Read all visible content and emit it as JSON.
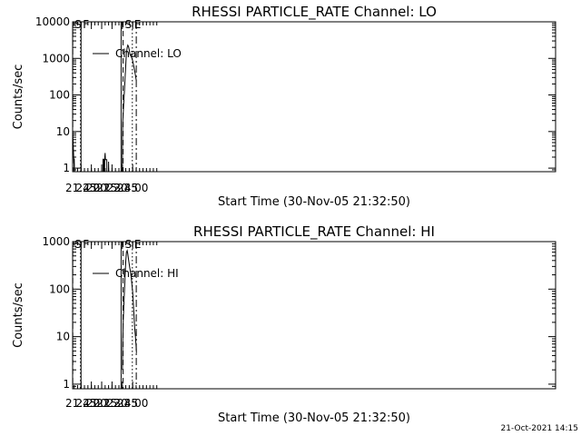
{
  "footer_stamp": "21-Oct-2021 14:15",
  "chart_data": [
    {
      "type": "line",
      "title": "RHESSI PARTICLE_RATE Channel: LO",
      "xlabel": "Start Time (30-Nov-05 21:32:50)",
      "ylabel": "Counts/sec",
      "yscale": "log",
      "ylim": [
        0.8,
        10000
      ],
      "xlim": [
        1292.8,
        1994.0
      ],
      "x_unit": "minutes of day",
      "x_ticks": [
        {
          "value": 1305,
          "label": "21:45"
        },
        {
          "value": 1320,
          "label": "22:00"
        },
        {
          "value": 1335,
          "label": "22:15"
        },
        {
          "value": 1350,
          "label": "22:30"
        },
        {
          "value": 1365,
          "label": "22:45"
        },
        {
          "value": 1380,
          "label": "23:00"
        }
      ],
      "y_ticks": [
        {
          "value": 1,
          "label": "1"
        },
        {
          "value": 10,
          "label": "10"
        },
        {
          "value": 100,
          "label": "100"
        },
        {
          "value": 1000,
          "label": "1000"
        },
        {
          "value": 10000,
          "label": "10000"
        }
      ],
      "legend": {
        "label": "Channel: LO",
        "placement": "top-left"
      },
      "markers": [
        {
          "x": 1293.0,
          "label": "S",
          "style": "dashed"
        },
        {
          "x": 1304.2,
          "label": "",
          "style": "dotted"
        },
        {
          "x": 1305.0,
          "label": "F",
          "style": "solid"
        },
        {
          "x": 1363.2,
          "label": "",
          "style": "solid"
        },
        {
          "x": 1366.0,
          "label": "S",
          "style": "dashed"
        },
        {
          "x": 1379.5,
          "label": "E",
          "style": "dotted"
        },
        {
          "x": 1385.2,
          "label": "",
          "style": "dashdot"
        }
      ],
      "series": [
        {
          "name": "Channel: LO",
          "segments": [
            [
              [
                1293.0,
                8.5
              ],
              [
                1293.6,
                4.5
              ],
              [
                1294.2,
                2.2
              ],
              [
                1294.8,
                1.4
              ],
              [
                1295.2,
                0.8
              ]
            ],
            [
              [
                1295.2,
                1.8
              ],
              [
                1295.4,
                0.8
              ]
            ],
            [
              [
                1336.8,
                0.8
              ],
              [
                1337.0,
                1.8
              ],
              [
                1337.2,
                0.8
              ]
            ],
            [
              [
                1338.2,
                0.8
              ],
              [
                1338.4,
                1.8
              ],
              [
                1338.6,
                0.8
              ]
            ],
            [
              [
                1339.2,
                0.8
              ],
              [
                1339.6,
                2.1
              ],
              [
                1340.0,
                2.6
              ],
              [
                1340.4,
                1.7
              ],
              [
                1342.4,
                1.7
              ],
              [
                1342.6,
                0.8
              ]
            ],
            [
              [
                1344.8,
                0.8
              ],
              [
                1345.0,
                1.5
              ],
              [
                1345.2,
                0.8
              ]
            ],
            [
              [
                1365.0,
                0.8
              ],
              [
                1365.3,
                8
              ],
              [
                1365.6,
                18
              ],
              [
                1366.2,
                30
              ],
              [
                1367.0,
                60
              ],
              [
                1368.0,
                130
              ],
              [
                1369.0,
                300
              ],
              [
                1370.0,
                700
              ],
              [
                1371.0,
                1400
              ],
              [
                1372.0,
                2000
              ],
              [
                1373.0,
                2300
              ],
              [
                1374.0,
                2100
              ],
              [
                1375.0,
                1700
              ],
              [
                1376.0,
                1300
              ],
              [
                1377.0,
                1200
              ],
              [
                1378.5,
                1050
              ],
              [
                1380.0,
                850
              ],
              [
                1381.5,
                620
              ],
              [
                1383.0,
                450
              ],
              [
                1384.5,
                300
              ],
              [
                1385.2,
                250
              ]
            ]
          ]
        }
      ]
    },
    {
      "type": "line",
      "title": "RHESSI PARTICLE_RATE Channel: HI",
      "xlabel": "Start Time (30-Nov-05 21:32:50)",
      "ylabel": "Counts/sec",
      "yscale": "log",
      "ylim": [
        0.8,
        1000
      ],
      "xlim": [
        1292.8,
        1994.0
      ],
      "x_unit": "minutes of day",
      "x_ticks": [
        {
          "value": 1305,
          "label": "21:45"
        },
        {
          "value": 1320,
          "label": "22:00"
        },
        {
          "value": 1335,
          "label": "22:15"
        },
        {
          "value": 1350,
          "label": "22:30"
        },
        {
          "value": 1365,
          "label": "22:45"
        },
        {
          "value": 1380,
          "label": "23:00"
        }
      ],
      "y_ticks": [
        {
          "value": 1,
          "label": "1"
        },
        {
          "value": 10,
          "label": "10"
        },
        {
          "value": 100,
          "label": "100"
        },
        {
          "value": 1000,
          "label": "1000"
        }
      ],
      "legend": {
        "label": "Channel: HI",
        "placement": "top-left"
      },
      "markers": [
        {
          "x": 1293.0,
          "label": "S",
          "style": "dashed"
        },
        {
          "x": 1304.2,
          "label": "",
          "style": "dotted"
        },
        {
          "x": 1305.0,
          "label": "F",
          "style": "solid"
        },
        {
          "x": 1363.2,
          "label": "",
          "style": "solid"
        },
        {
          "x": 1366.0,
          "label": "S",
          "style": "dashed"
        },
        {
          "x": 1379.5,
          "label": "E",
          "style": "dotted"
        },
        {
          "x": 1385.2,
          "label": "",
          "style": "dashdot"
        }
      ],
      "series": [
        {
          "name": "Channel: HI",
          "segments": [
            [
              [
                1365.2,
                2
              ],
              [
                1365.6,
                8
              ],
              [
                1366.2,
                20
              ],
              [
                1367.0,
                40
              ],
              [
                1368.0,
                90
              ],
              [
                1369.0,
                200
              ],
              [
                1370.0,
                400
              ],
              [
                1371.0,
                600
              ],
              [
                1372.0,
                650
              ],
              [
                1373.0,
                550
              ],
              [
                1374.0,
                420
              ],
              [
                1375.0,
                330
              ],
              [
                1376.0,
                270
              ],
              [
                1377.5,
                200
              ],
              [
                1379.0,
                120
              ],
              [
                1380.0,
                85
              ],
              [
                1381.0,
                50
              ],
              [
                1382.0,
                26
              ],
              [
                1383.0,
                15
              ],
              [
                1384.0,
                10
              ],
              [
                1385.0,
                6
              ],
              [
                1385.4,
                4.5
              ]
            ]
          ]
        }
      ]
    }
  ]
}
